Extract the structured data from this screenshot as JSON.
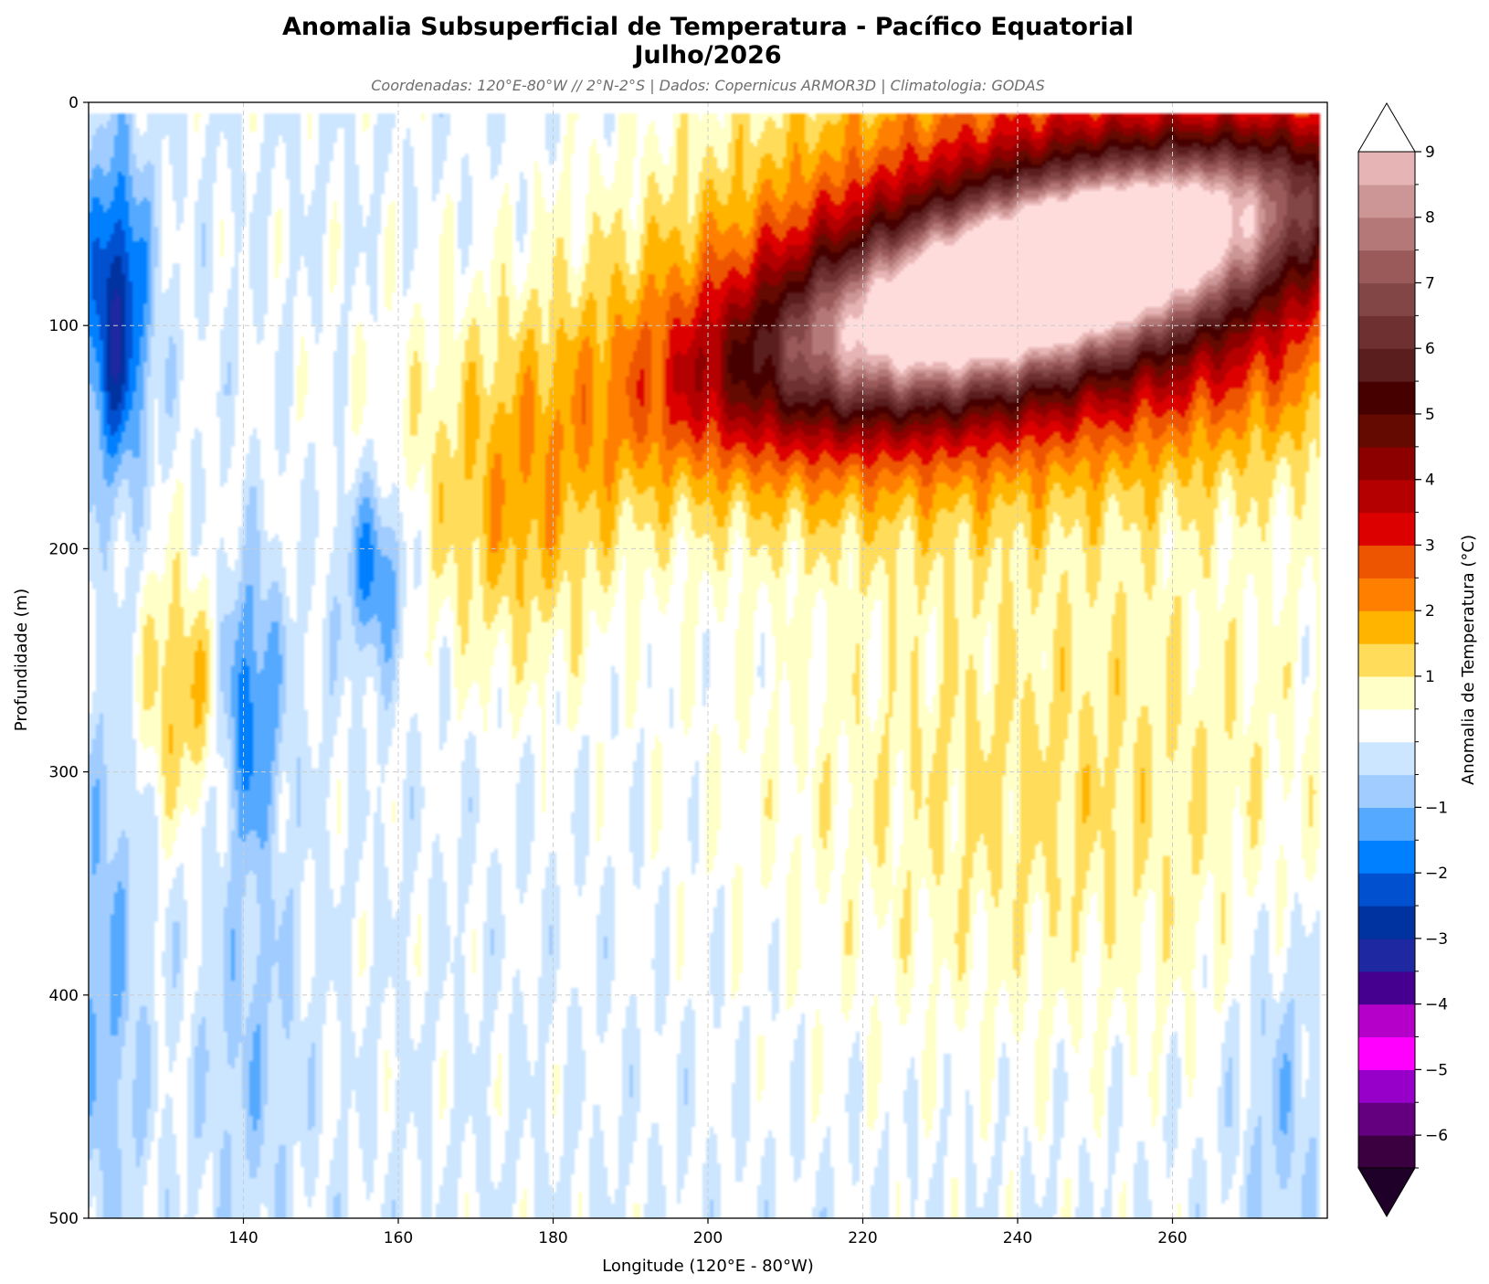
{
  "chart_data": {
    "type": "heatmap",
    "title": "Anomalia Subsuperficial de Temperatura - Pacífico Equatorial",
    "title_line2": "Julho/2026",
    "subtitle": "Coordenadas: 120°E-80°W // 2°N-2°S | Dados: Copernicus ARMOR3D | Climatologia: GODAS",
    "xlabel": "Longitude (120°E - 80°W)",
    "ylabel": "Profundidade (m)",
    "colorbar_label": "Anomalia de Temperatura (°C)",
    "xlim": [
      120,
      280
    ],
    "ylim": [
      500,
      0
    ],
    "y_inverted": true,
    "x_ticks": [
      "140",
      "160",
      "180",
      "200",
      "220",
      "240",
      "260"
    ],
    "x_tick_values": [
      140,
      160,
      180,
      200,
      220,
      240,
      260
    ],
    "y_ticks": [
      "0",
      "100",
      "200",
      "300",
      "400",
      "500"
    ],
    "y_tick_values": [
      0,
      100,
      200,
      300,
      400,
      500
    ],
    "colorbar_ticks": [
      "9",
      "8",
      "7",
      "6",
      "5",
      "4",
      "3",
      "2",
      "1",
      "−1",
      "−2",
      "−3",
      "−4",
      "−5",
      "−6"
    ],
    "colorbar_tick_values": [
      9,
      8,
      7,
      6,
      5,
      4,
      3,
      2,
      1,
      -1,
      -2,
      -3,
      -4,
      -5,
      -6
    ],
    "colorbar_range": [
      -6.5,
      9
    ],
    "colorbar_extend": "both",
    "grid": true,
    "levels": [
      -6.5,
      -6,
      -5.5,
      -5,
      -4.5,
      -4,
      -3.5,
      -3,
      -2.5,
      -2,
      -1.5,
      -1,
      -0.5,
      0,
      0.5,
      1,
      1.5,
      2,
      2.5,
      3,
      3.5,
      4,
      4.5,
      5,
      5.5,
      6,
      6.5,
      7,
      7.5,
      8,
      8.5,
      9
    ],
    "colors": [
      "#3a0040",
      "#640080",
      "#9600c8",
      "#ff00ff",
      "#b400c8",
      "#460090",
      "#1e28a0",
      "#0032a0",
      "#0050d0",
      "#0080ff",
      "#55aaff",
      "#a0ccff",
      "#cde6ff",
      "#ffffff",
      "#ffffc8",
      "#ffdc5a",
      "#ffb400",
      "#ff8000",
      "#ee5500",
      "#dc0000",
      "#b40000",
      "#8c0000",
      "#640a00",
      "#460000",
      "#5a1e1e",
      "#6e3030",
      "#824646",
      "#9b5a5a",
      "#b47878",
      "#cd9696",
      "#e6b4b4",
      "#ffdcdc"
    ],
    "extend_min_color": "#1e0028",
    "extend_max_color": "#ffffff",
    "field_description": "Temperature anomaly in °C versus longitude and depth: a warm core above 8 °C centered near 240–250° at 60–80 m, sloping down to ~120 m near 200–220°; anomalies of 3–6 °C around it down to ~180 m; weak warm anomalies (0.5–1 °C) in the eastern basin down to ~400 m; cool anomalies (−0.5 to −2.5 °C) west of 160°, strongest near 122–126° at 60–140 m."
  }
}
